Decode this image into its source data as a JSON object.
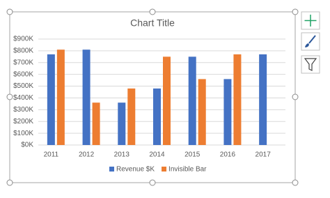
{
  "chart_data": {
    "type": "bar",
    "title": "Chart Title",
    "categories": [
      "2011",
      "2012",
      "2013",
      "2014",
      "2015",
      "2016",
      "2017"
    ],
    "series": [
      {
        "name": "Revenue $K",
        "color": "#4472c4",
        "values": [
          770000,
          810000,
          360000,
          480000,
          750000,
          560000,
          770000
        ]
      },
      {
        "name": "Invisible Bar",
        "color": "#ed7d31",
        "values": [
          810000,
          360000,
          480000,
          750000,
          560000,
          770000,
          null
        ]
      }
    ],
    "ylim": [
      0,
      900000
    ],
    "yticks": [
      {
        "value": 0,
        "label": "$0K"
      },
      {
        "value": 100000,
        "label": "$100K"
      },
      {
        "value": 200000,
        "label": "$200K"
      },
      {
        "value": 300000,
        "label": "$300K"
      },
      {
        "value": 400000,
        "label": "$400K"
      },
      {
        "value": 500000,
        "label": "$500K"
      },
      {
        "value": 600000,
        "label": "$600K"
      },
      {
        "value": 700000,
        "label": "$700K"
      },
      {
        "value": 800000,
        "label": "$800K"
      },
      {
        "value": 900000,
        "label": "$900K"
      }
    ],
    "grid": true,
    "legend": "bottom"
  }
}
